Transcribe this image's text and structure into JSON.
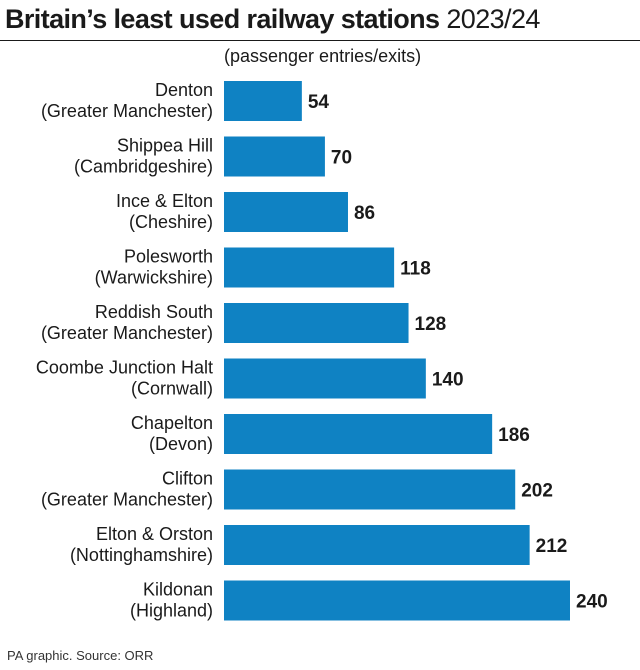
{
  "header": {
    "title": "Britain’s least used railway stations",
    "year": "2023/24",
    "subtitle": "(passenger entries/exits)"
  },
  "footer": {
    "source": "PA graphic. Source: ORR"
  },
  "colors": {
    "bar": "#0f82c3",
    "text": "#1a1a1a"
  },
  "chart_data": {
    "type": "bar",
    "orientation": "horizontal",
    "categories": [
      [
        "Denton",
        "(Greater Manchester)"
      ],
      [
        "Shippea Hill",
        "(Cambridgeshire)"
      ],
      [
        "Ince & Elton",
        "(Cheshire)"
      ],
      [
        "Polesworth",
        "(Warwickshire)"
      ],
      [
        "Reddish South",
        "(Greater Manchester)"
      ],
      [
        "Coombe Junction Halt",
        "(Cornwall)"
      ],
      [
        "Chapelton",
        "(Devon)"
      ],
      [
        "Clifton",
        "(Greater Manchester)"
      ],
      [
        "Elton & Orston",
        "(Nottinghamshire)"
      ],
      [
        "Kildonan",
        "(Highland)"
      ]
    ],
    "values": [
      54,
      70,
      86,
      118,
      128,
      140,
      186,
      202,
      212,
      240
    ],
    "value_labels": [
      "54",
      "70",
      "86",
      "118",
      "128",
      "140",
      "186",
      "202",
      "212",
      "240"
    ],
    "xlim": [
      0,
      240
    ],
    "grid": false,
    "legend": "none"
  }
}
